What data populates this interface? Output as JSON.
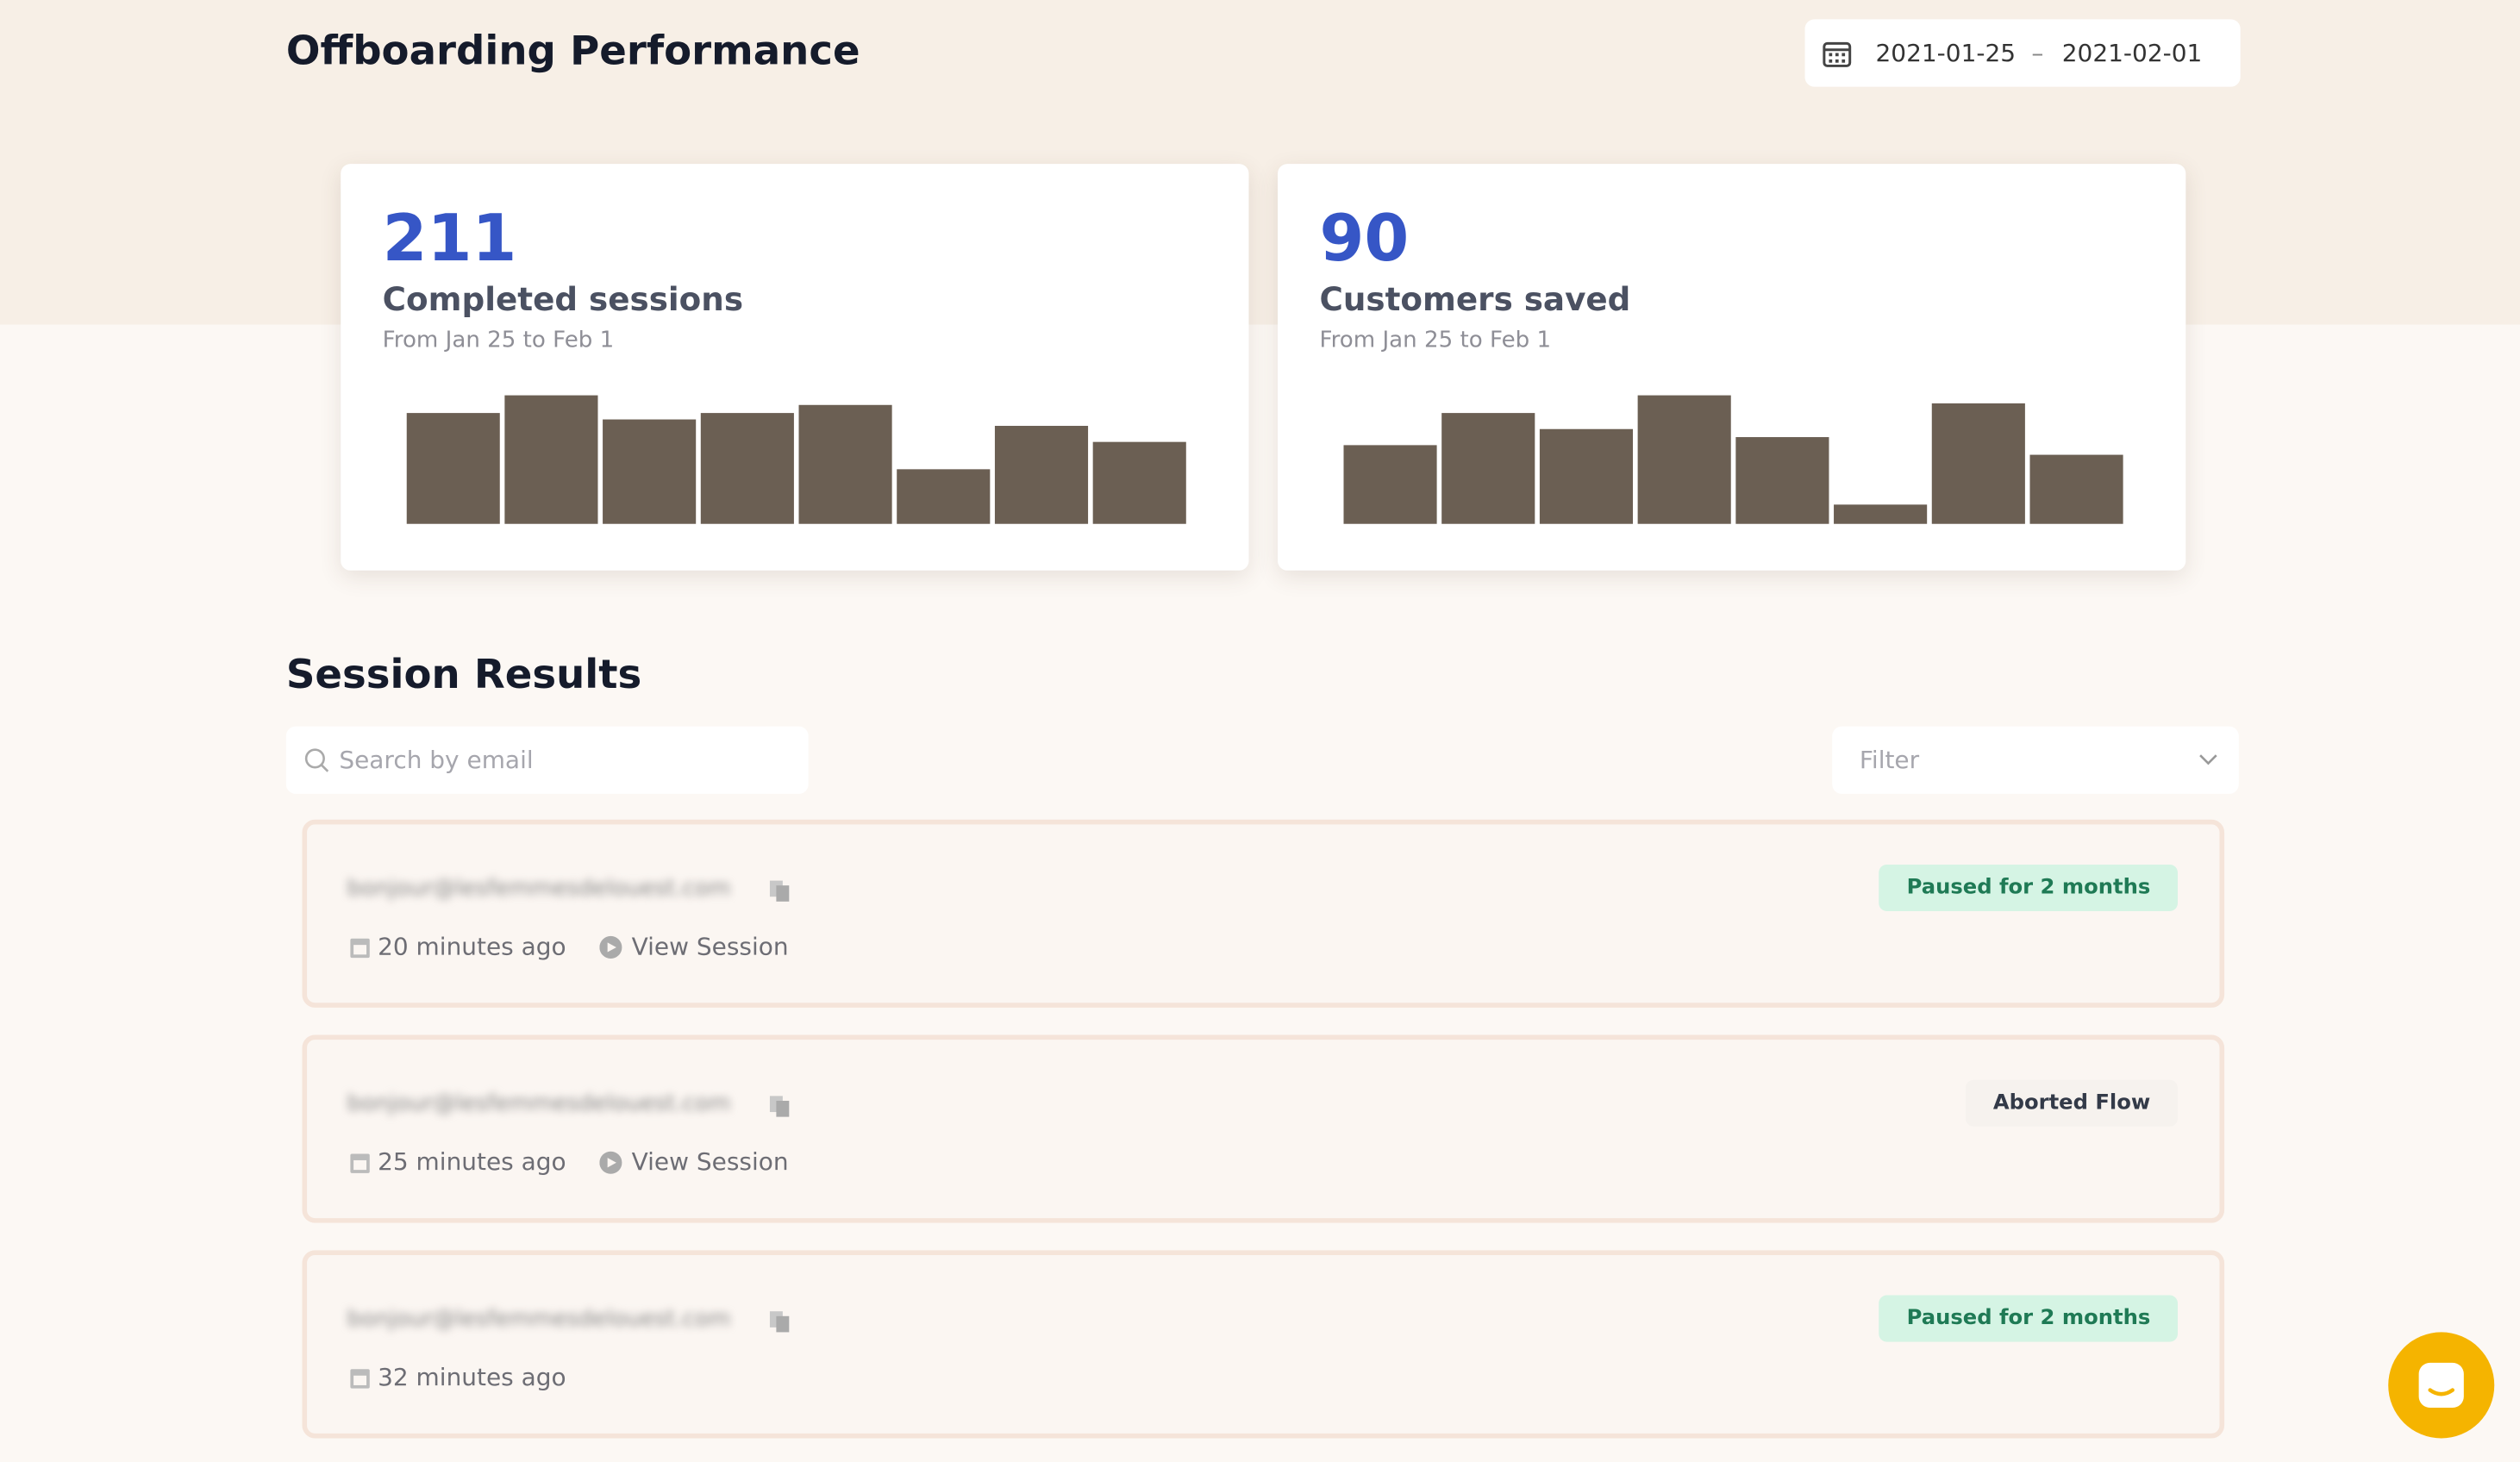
{
  "header": {
    "title": "Offboarding Performance",
    "date_start": "2021-01-25",
    "date_separator": "–",
    "date_end": "2021-02-01"
  },
  "stats": [
    {
      "value": 211,
      "label": "Completed sessions",
      "range": "From Jan 25 to Feb 1",
      "chart": {
        "type": "bar",
        "color": "#6b5f53",
        "values": [
          69,
          80,
          65,
          69,
          74,
          34,
          61,
          51
        ]
      }
    },
    {
      "value": 90,
      "label": "Customers saved",
      "range": "From Jan 25 to Feb 1",
      "chart": {
        "type": "bar",
        "color": "#6b5f53",
        "values": [
          49,
          69,
          59,
          80,
          54,
          12,
          75,
          43
        ]
      }
    }
  ],
  "sessions": {
    "title": "Session Results",
    "search_placeholder": "Search by email",
    "filter_placeholder": "Filter",
    "rows": [
      {
        "email": "bonjour@lesfemmesdelouest.com",
        "time": "20 minutes ago",
        "action": "View Session",
        "status": "Paused for 2 months",
        "status_kind": "paused"
      },
      {
        "email": "bonjour@lesfemmesdelouest.com",
        "time": "25 minutes ago",
        "action": "View Session",
        "status": "Aborted Flow",
        "status_kind": "aborted"
      },
      {
        "email": "bonjour@lesfemmesdelouest.com",
        "time": "32 minutes ago",
        "status": "Paused for 2 months",
        "status_kind": "paused"
      }
    ]
  }
}
